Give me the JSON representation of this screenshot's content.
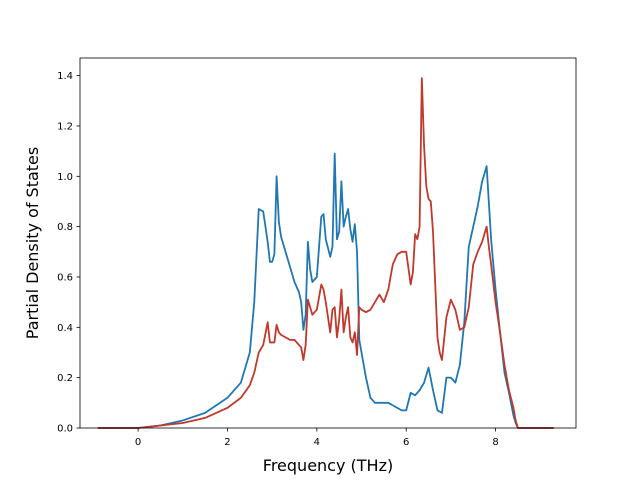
{
  "chart_data": {
    "type": "line",
    "title": "",
    "xlabel": "Frequency (THz)",
    "ylabel": "Partial Density of States",
    "xlim": [
      -1.3,
      9.8
    ],
    "ylim": [
      0.0,
      1.47
    ],
    "xticks": [
      0,
      2,
      4,
      6,
      8
    ],
    "xtick_labels": [
      "0",
      "2",
      "4",
      "6",
      "8"
    ],
    "yticks": [
      0.0,
      0.2,
      0.4,
      0.6,
      0.8,
      1.0,
      1.2,
      1.4
    ],
    "ytick_labels": [
      "0.0",
      "0.2",
      "0.4",
      "0.6",
      "0.8",
      "1.0",
      "1.2",
      "1.4"
    ],
    "grid": false,
    "legend": false,
    "series": [
      {
        "color": "#1f77b4",
        "x": [
          -0.9,
          0.0,
          0.5,
          1.0,
          1.5,
          2.0,
          2.3,
          2.5,
          2.6,
          2.7,
          2.8,
          2.9,
          2.95,
          3.0,
          3.05,
          3.1,
          3.15,
          3.2,
          3.3,
          3.4,
          3.5,
          3.6,
          3.65,
          3.7,
          3.75,
          3.8,
          3.85,
          3.9,
          4.0,
          4.1,
          4.15,
          4.2,
          4.3,
          4.35,
          4.4,
          4.45,
          4.5,
          4.55,
          4.6,
          4.65,
          4.7,
          4.75,
          4.8,
          4.85,
          4.9,
          4.95,
          5.0,
          5.1,
          5.2,
          5.3,
          5.5,
          5.6,
          5.7,
          5.8,
          5.9,
          6.0,
          6.1,
          6.2,
          6.3,
          6.4,
          6.5,
          6.6,
          6.7,
          6.8,
          6.9,
          7.0,
          7.1,
          7.2,
          7.3,
          7.4,
          7.5,
          7.6,
          7.7,
          7.8,
          7.9,
          8.0,
          8.1,
          8.2,
          8.3,
          8.4,
          8.45,
          8.5,
          9.3
        ],
        "y": [
          0.0,
          0.0,
          0.01,
          0.03,
          0.06,
          0.12,
          0.18,
          0.3,
          0.5,
          0.87,
          0.86,
          0.74,
          0.66,
          0.66,
          0.69,
          1.0,
          0.82,
          0.76,
          0.7,
          0.64,
          0.58,
          0.54,
          0.5,
          0.39,
          0.45,
          0.74,
          0.63,
          0.58,
          0.6,
          0.84,
          0.85,
          0.75,
          0.68,
          0.72,
          1.09,
          0.75,
          0.78,
          0.98,
          0.8,
          0.84,
          0.87,
          0.79,
          0.74,
          0.81,
          0.7,
          0.35,
          0.3,
          0.2,
          0.12,
          0.1,
          0.1,
          0.1,
          0.09,
          0.08,
          0.07,
          0.07,
          0.14,
          0.13,
          0.15,
          0.18,
          0.24,
          0.15,
          0.07,
          0.06,
          0.2,
          0.2,
          0.18,
          0.25,
          0.42,
          0.72,
          0.8,
          0.88,
          0.98,
          1.04,
          0.75,
          0.55,
          0.38,
          0.22,
          0.14,
          0.05,
          0.02,
          0.0,
          0.0
        ]
      },
      {
        "color": "#c0392b",
        "x": [
          -0.9,
          0.0,
          0.5,
          1.0,
          1.5,
          2.0,
          2.3,
          2.5,
          2.6,
          2.7,
          2.8,
          2.9,
          2.95,
          3.0,
          3.05,
          3.1,
          3.15,
          3.2,
          3.3,
          3.4,
          3.5,
          3.6,
          3.65,
          3.7,
          3.75,
          3.8,
          3.85,
          3.9,
          4.0,
          4.1,
          4.15,
          4.2,
          4.3,
          4.35,
          4.4,
          4.45,
          4.5,
          4.55,
          4.6,
          4.65,
          4.7,
          4.75,
          4.8,
          4.85,
          4.9,
          4.95,
          5.0,
          5.1,
          5.2,
          5.3,
          5.4,
          5.5,
          5.6,
          5.7,
          5.8,
          5.9,
          6.0,
          6.1,
          6.15,
          6.2,
          6.25,
          6.3,
          6.35,
          6.4,
          6.45,
          6.5,
          6.55,
          6.6,
          6.65,
          6.7,
          6.75,
          6.8,
          6.9,
          7.0,
          7.1,
          7.2,
          7.3,
          7.4,
          7.5,
          7.6,
          7.7,
          7.8,
          7.85,
          7.9,
          8.0,
          8.1,
          8.2,
          8.3,
          8.4,
          8.45,
          8.5,
          9.3
        ],
        "y": [
          0.0,
          0.0,
          0.01,
          0.02,
          0.04,
          0.08,
          0.12,
          0.17,
          0.22,
          0.3,
          0.33,
          0.42,
          0.34,
          0.34,
          0.34,
          0.41,
          0.38,
          0.37,
          0.36,
          0.35,
          0.35,
          0.33,
          0.32,
          0.27,
          0.33,
          0.51,
          0.48,
          0.45,
          0.47,
          0.57,
          0.55,
          0.5,
          0.38,
          0.47,
          0.48,
          0.36,
          0.43,
          0.55,
          0.38,
          0.44,
          0.48,
          0.36,
          0.34,
          0.38,
          0.29,
          0.48,
          0.47,
          0.46,
          0.47,
          0.5,
          0.53,
          0.5,
          0.55,
          0.65,
          0.69,
          0.7,
          0.7,
          0.57,
          0.62,
          0.77,
          0.75,
          0.8,
          1.39,
          1.12,
          0.96,
          0.91,
          0.9,
          0.78,
          0.57,
          0.36,
          0.3,
          0.27,
          0.44,
          0.51,
          0.47,
          0.39,
          0.4,
          0.48,
          0.65,
          0.7,
          0.74,
          0.8,
          0.72,
          0.65,
          0.5,
          0.38,
          0.25,
          0.15,
          0.08,
          0.03,
          0.0,
          0.0
        ]
      }
    ]
  }
}
